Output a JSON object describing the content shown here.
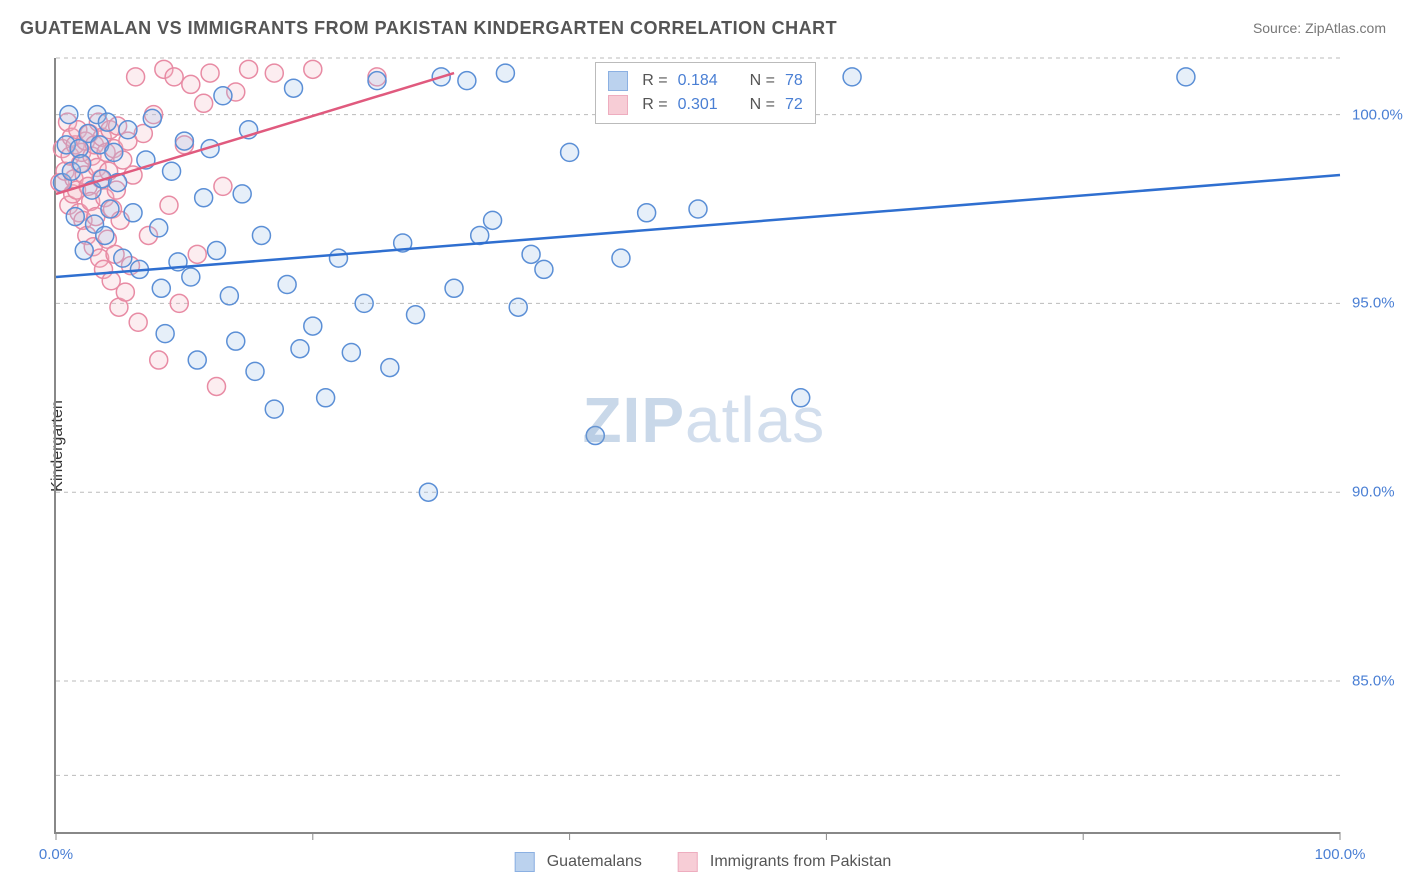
{
  "title": "GUATEMALAN VS IMMIGRANTS FROM PAKISTAN KINDERGARTEN CORRELATION CHART",
  "source_label": "Source: ZipAtlas.com",
  "y_axis_label": "Kindergarten",
  "watermark": {
    "zip": "ZIP",
    "atlas": "atlas"
  },
  "plot": {
    "type": "scatter",
    "xlim": [
      0,
      100
    ],
    "ylim": [
      81,
      101.5
    ],
    "x_ticks": [
      0,
      20,
      40,
      60,
      80,
      100
    ],
    "x_tick_labels": [
      "0.0%",
      "",
      "",
      "",
      "",
      "100.0%"
    ],
    "y_ticks": [
      85,
      90,
      95,
      100
    ],
    "y_tick_labels": [
      "85.0%",
      "90.0%",
      "95.0%",
      "100.0%"
    ],
    "gridlines_y": [
      82.5,
      85,
      90,
      95,
      100,
      101.5
    ],
    "background_color": "#ffffff",
    "grid_color": "#bbbbbb",
    "marker_radius": 9
  },
  "series": {
    "blue": {
      "label": "Guatemalans",
      "fill": "#9fc0e8",
      "stroke": "#5b8fd6",
      "trend_color": "#2f6fd0",
      "R": "0.184",
      "N": "78",
      "trend": {
        "x1": 0,
        "y1": 95.7,
        "x2": 100,
        "y2": 98.4
      },
      "points": [
        [
          0.5,
          98.2
        ],
        [
          0.8,
          99.2
        ],
        [
          1.0,
          100.0
        ],
        [
          1.2,
          98.5
        ],
        [
          1.5,
          97.3
        ],
        [
          1.8,
          99.1
        ],
        [
          2.0,
          98.7
        ],
        [
          2.2,
          96.4
        ],
        [
          2.5,
          99.5
        ],
        [
          2.8,
          98.0
        ],
        [
          3.0,
          97.1
        ],
        [
          3.2,
          100.0
        ],
        [
          3.4,
          99.2
        ],
        [
          3.6,
          98.3
        ],
        [
          3.8,
          96.8
        ],
        [
          4.0,
          99.8
        ],
        [
          4.2,
          97.5
        ],
        [
          4.5,
          99.0
        ],
        [
          4.8,
          98.2
        ],
        [
          5.2,
          96.2
        ],
        [
          5.6,
          99.6
        ],
        [
          6.0,
          97.4
        ],
        [
          6.5,
          95.9
        ],
        [
          7.0,
          98.8
        ],
        [
          7.5,
          99.9
        ],
        [
          8.0,
          97.0
        ],
        [
          8.2,
          95.4
        ],
        [
          8.5,
          94.2
        ],
        [
          9.0,
          98.5
        ],
        [
          9.5,
          96.1
        ],
        [
          10.0,
          99.3
        ],
        [
          10.5,
          95.7
        ],
        [
          11.0,
          93.5
        ],
        [
          11.5,
          97.8
        ],
        [
          12.0,
          99.1
        ],
        [
          12.5,
          96.4
        ],
        [
          13.0,
          100.5
        ],
        [
          13.5,
          95.2
        ],
        [
          14.0,
          94.0
        ],
        [
          14.5,
          97.9
        ],
        [
          15.0,
          99.6
        ],
        [
          15.5,
          93.2
        ],
        [
          16.0,
          96.8
        ],
        [
          17.0,
          92.2
        ],
        [
          18.0,
          95.5
        ],
        [
          18.5,
          100.7
        ],
        [
          19.0,
          93.8
        ],
        [
          20.0,
          94.4
        ],
        [
          21.0,
          92.5
        ],
        [
          22.0,
          96.2
        ],
        [
          23.0,
          93.7
        ],
        [
          24.0,
          95.0
        ],
        [
          25.0,
          100.9
        ],
        [
          26.0,
          93.3
        ],
        [
          27.0,
          96.6
        ],
        [
          28.0,
          94.7
        ],
        [
          29.0,
          90.0
        ],
        [
          30.0,
          101.0
        ],
        [
          31.0,
          95.4
        ],
        [
          32.0,
          100.9
        ],
        [
          33.0,
          96.8
        ],
        [
          34.0,
          97.2
        ],
        [
          35.0,
          101.1
        ],
        [
          36.0,
          94.9
        ],
        [
          37.0,
          96.3
        ],
        [
          38.0,
          95.9
        ],
        [
          40.0,
          99.0
        ],
        [
          42.0,
          91.5
        ],
        [
          44.0,
          96.2
        ],
        [
          46.0,
          97.4
        ],
        [
          48.0,
          100.8
        ],
        [
          50.0,
          97.5
        ],
        [
          52.0,
          100.8
        ],
        [
          54.0,
          100.9
        ],
        [
          56.0,
          101.1
        ],
        [
          58.0,
          92.5
        ],
        [
          62.0,
          101.0
        ],
        [
          88.0,
          101.0
        ]
      ]
    },
    "pink": {
      "label": "Immigrants from Pakistan",
      "fill": "#f4b8c6",
      "stroke": "#e88ba4",
      "trend_color": "#e05a7e",
      "R": "0.301",
      "N": "72",
      "trend": {
        "x1": 0,
        "y1": 97.9,
        "x2": 31,
        "y2": 101.1
      },
      "points": [
        [
          0.3,
          98.2
        ],
        [
          0.5,
          99.1
        ],
        [
          0.7,
          98.5
        ],
        [
          0.9,
          99.8
        ],
        [
          1.0,
          97.6
        ],
        [
          1.1,
          98.9
        ],
        [
          1.2,
          99.4
        ],
        [
          1.3,
          97.9
        ],
        [
          1.4,
          98.3
        ],
        [
          1.5,
          99.2
        ],
        [
          1.6,
          98.0
        ],
        [
          1.7,
          99.6
        ],
        [
          1.8,
          97.4
        ],
        [
          1.9,
          98.7
        ],
        [
          2.0,
          99.0
        ],
        [
          2.1,
          97.2
        ],
        [
          2.2,
          98.4
        ],
        [
          2.3,
          99.3
        ],
        [
          2.4,
          96.8
        ],
        [
          2.5,
          98.1
        ],
        [
          2.6,
          99.5
        ],
        [
          2.7,
          97.7
        ],
        [
          2.8,
          98.9
        ],
        [
          2.9,
          96.5
        ],
        [
          3.0,
          99.2
        ],
        [
          3.1,
          97.3
        ],
        [
          3.2,
          98.6
        ],
        [
          3.3,
          99.8
        ],
        [
          3.4,
          96.2
        ],
        [
          3.5,
          98.3
        ],
        [
          3.6,
          99.4
        ],
        [
          3.7,
          95.9
        ],
        [
          3.8,
          97.8
        ],
        [
          3.9,
          99.0
        ],
        [
          4.0,
          96.7
        ],
        [
          4.1,
          98.5
        ],
        [
          4.2,
          99.6
        ],
        [
          4.3,
          95.6
        ],
        [
          4.4,
          97.5
        ],
        [
          4.5,
          99.1
        ],
        [
          4.6,
          96.3
        ],
        [
          4.7,
          98.0
        ],
        [
          4.8,
          99.7
        ],
        [
          4.9,
          94.9
        ],
        [
          5.0,
          97.2
        ],
        [
          5.2,
          98.8
        ],
        [
          5.4,
          95.3
        ],
        [
          5.6,
          99.3
        ],
        [
          5.8,
          96.0
        ],
        [
          6.0,
          98.4
        ],
        [
          6.2,
          101.0
        ],
        [
          6.4,
          94.5
        ],
        [
          6.8,
          99.5
        ],
        [
          7.2,
          96.8
        ],
        [
          7.6,
          100.0
        ],
        [
          8.0,
          93.5
        ],
        [
          8.4,
          101.2
        ],
        [
          8.8,
          97.6
        ],
        [
          9.2,
          101.0
        ],
        [
          9.6,
          95.0
        ],
        [
          10.0,
          99.2
        ],
        [
          10.5,
          100.8
        ],
        [
          11.0,
          96.3
        ],
        [
          11.5,
          100.3
        ],
        [
          12.0,
          101.1
        ],
        [
          12.5,
          92.8
        ],
        [
          13.0,
          98.1
        ],
        [
          14.0,
          100.6
        ],
        [
          15.0,
          101.2
        ],
        [
          17.0,
          101.1
        ],
        [
          20.0,
          101.2
        ],
        [
          25.0,
          101.0
        ]
      ]
    }
  },
  "stats_legend": {
    "R_prefix": "R = ",
    "N_prefix": "N = "
  },
  "bottom_legend_order": [
    "blue",
    "pink"
  ]
}
